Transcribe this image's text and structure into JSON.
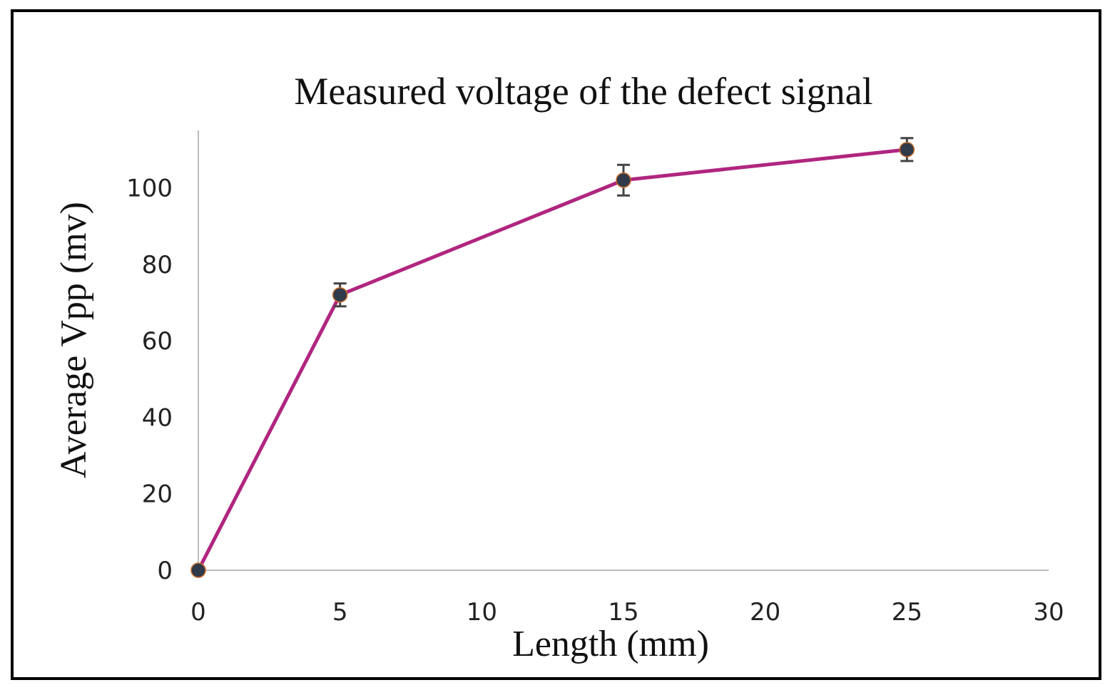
{
  "chart_data": {
    "type": "line",
    "title": "Measured voltage of the defect signal",
    "x_label": "Length (mm)",
    "y_label": "Average Vpp (mv)",
    "x": [
      0,
      5,
      15,
      25
    ],
    "values": [
      0,
      72,
      102,
      110
    ],
    "errors": [
      0,
      3,
      4,
      3
    ],
    "color": "#b0267f",
    "marker_color": "#2f3a4a",
    "error_color": "#444444",
    "xlim": [
      0,
      30
    ],
    "xticks": [
      0,
      5,
      10,
      15,
      20,
      25,
      30
    ],
    "ylim": [
      0,
      115
    ],
    "yticks": [
      0,
      20,
      40,
      60,
      80,
      100
    ],
    "grid": false
  }
}
